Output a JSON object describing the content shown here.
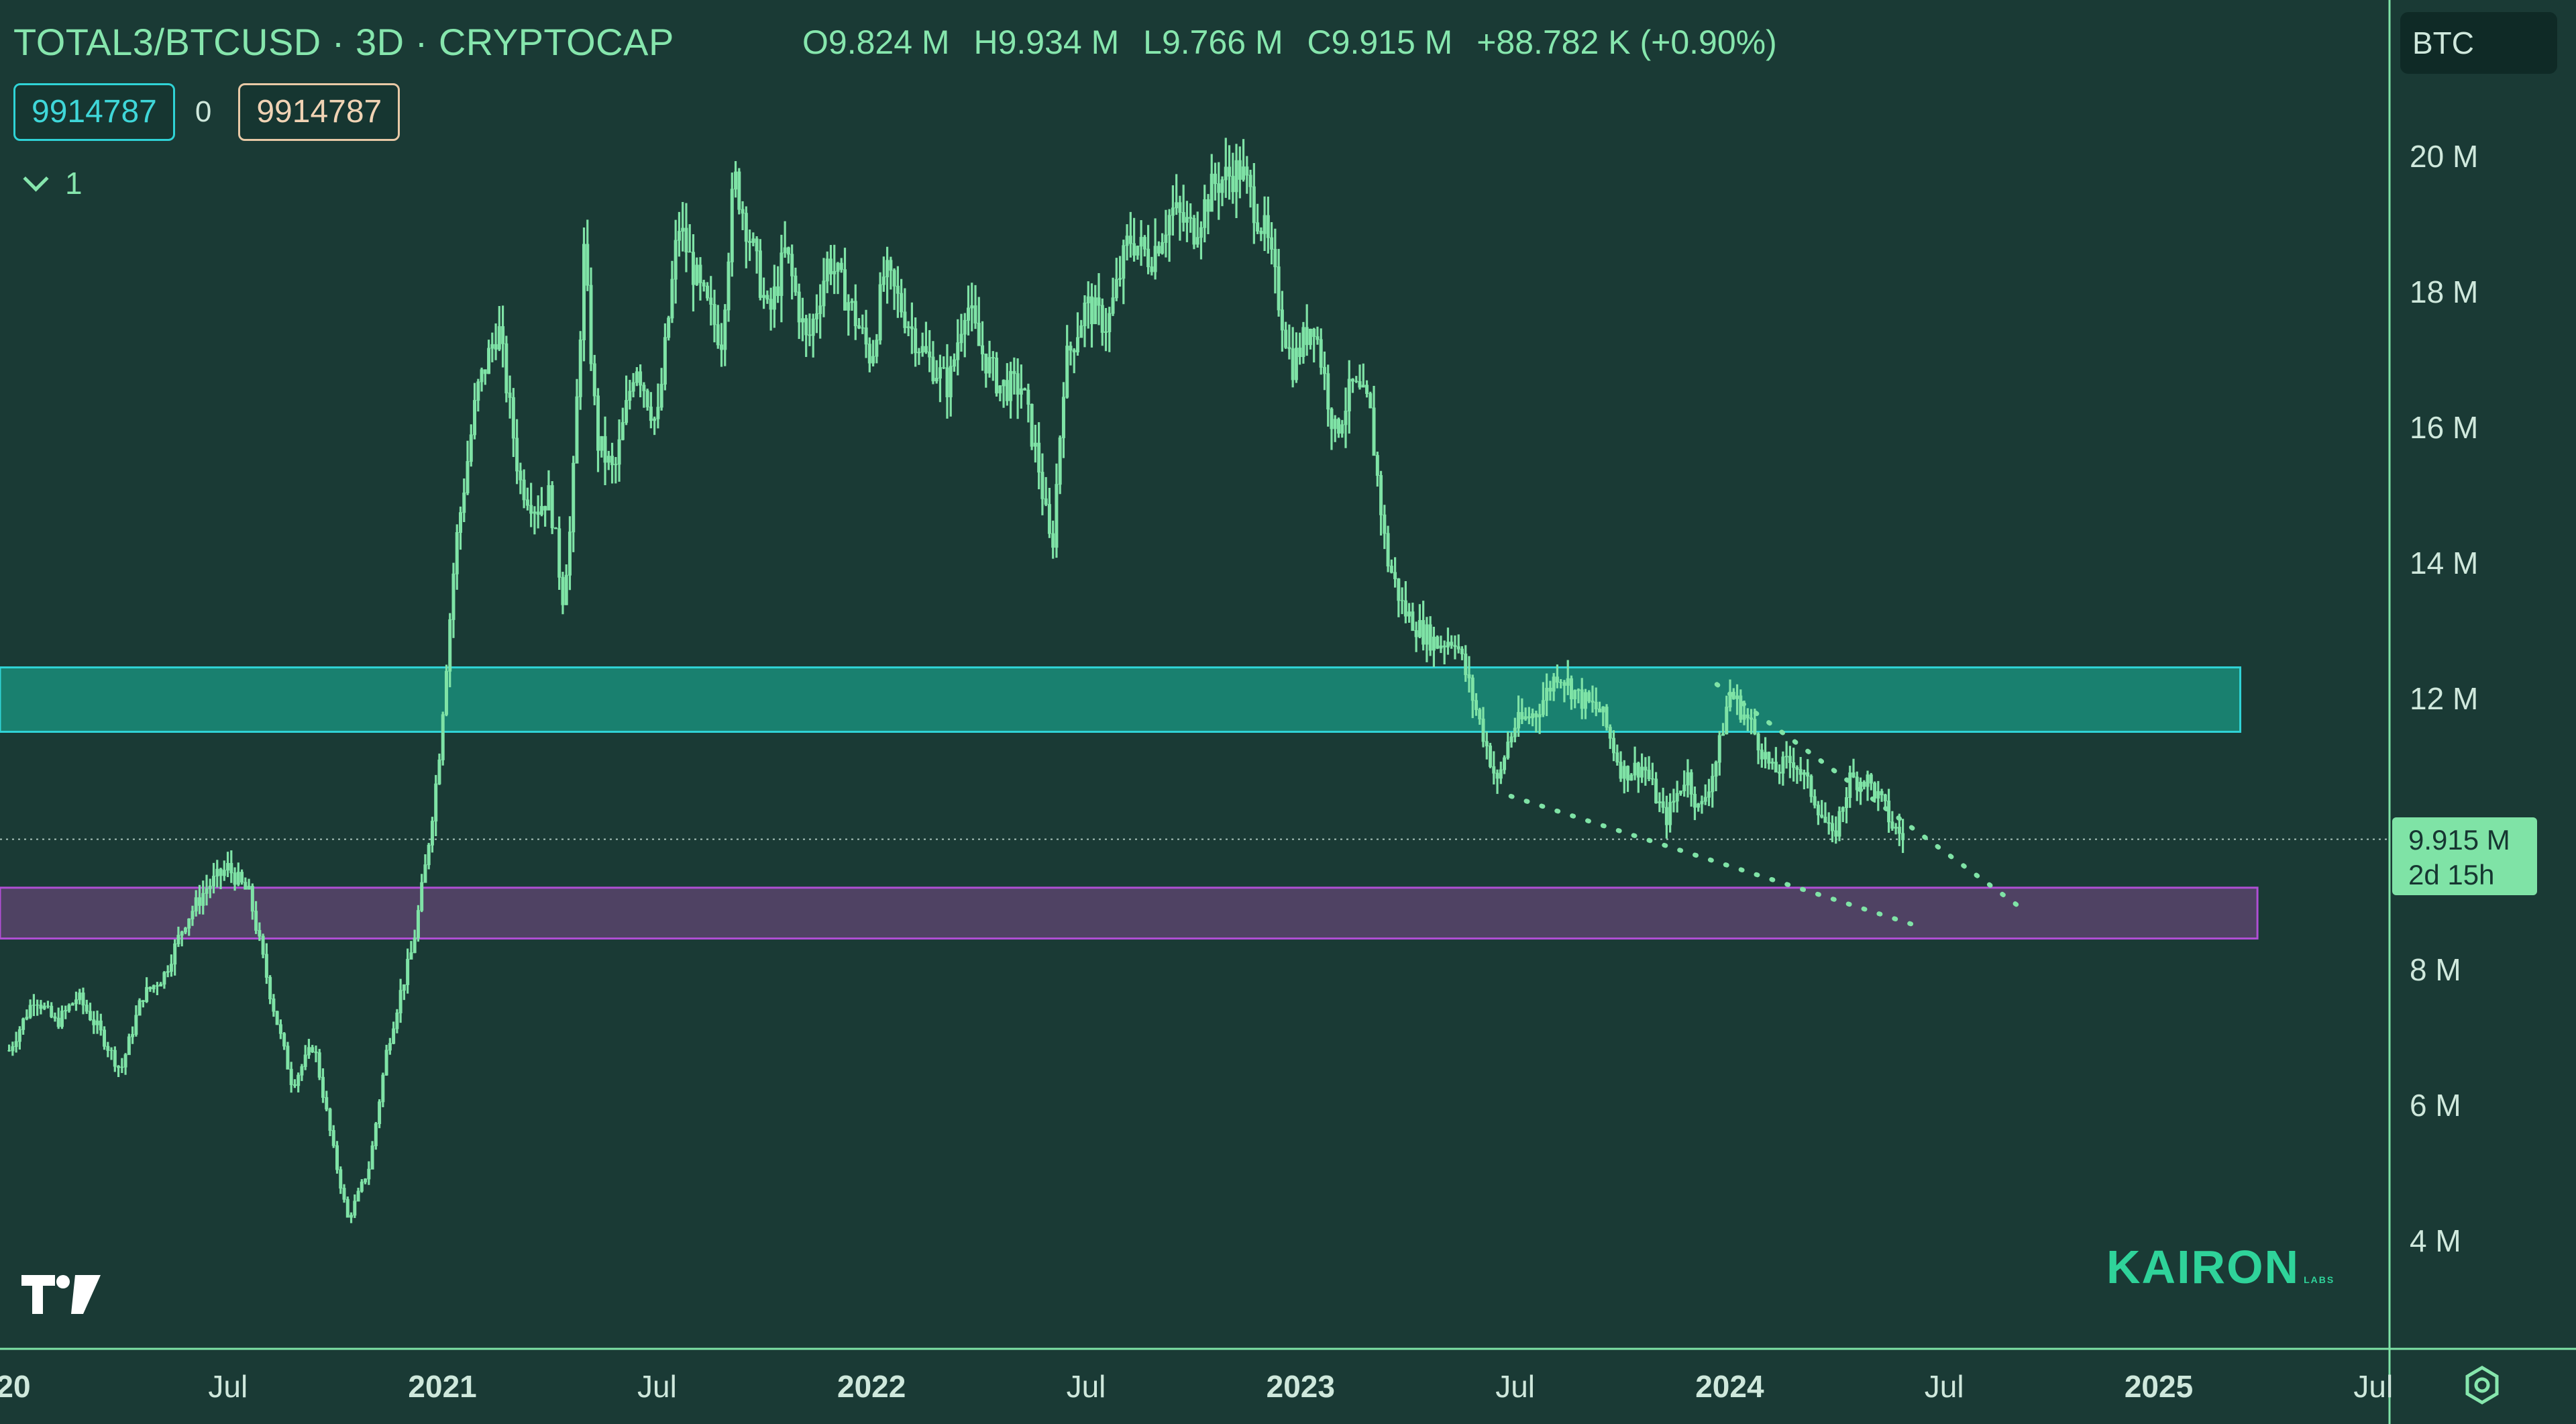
{
  "header": {
    "title": "TOTAL3/BTCUSD · 3D · CRYPTOCAP",
    "ohlc": {
      "open": "O9.824 M",
      "high": "H9.934 M",
      "low": "L9.766 M",
      "close": "C9.915 M",
      "change": "+88.782 K (+0.90%)"
    },
    "input_a": "9914787",
    "input_zero": "0",
    "input_b": "9914787",
    "collapse_count": "1"
  },
  "price_axis": {
    "unit": "BTC",
    "current_value": "9.915 M",
    "countdown": "2d 15h"
  },
  "watermark": {
    "brand": "KAIRON",
    "sub": "LABS"
  },
  "colors": {
    "background": "#1a3a35",
    "candles": "#7fe3a6",
    "resistance_zone": "#19806f",
    "support_zone": "#4f4263",
    "support_border": "#b04fd4",
    "resistance_border": "#2fd3d6"
  },
  "chart_data": {
    "type": "line",
    "title": "TOTAL3/BTCUSD · 3D · CRYPTOCAP",
    "y_ticks": [
      "4 M",
      "6 M",
      "8 M",
      "12 M",
      "14 M",
      "16 M",
      "18 M",
      "20 M"
    ],
    "x_ticks": [
      {
        "label": "20",
        "t": 2020.0,
        "bold": true
      },
      {
        "label": "Jul",
        "t": 2020.5,
        "bold": false
      },
      {
        "label": "2021",
        "t": 2021.0,
        "bold": true
      },
      {
        "label": "Jul",
        "t": 2021.5,
        "bold": false
      },
      {
        "label": "2022",
        "t": 2022.0,
        "bold": true
      },
      {
        "label": "Jul",
        "t": 2022.5,
        "bold": false
      },
      {
        "label": "2023",
        "t": 2023.0,
        "bold": true
      },
      {
        "label": "Jul",
        "t": 2023.5,
        "bold": false
      },
      {
        "label": "2024",
        "t": 2024.0,
        "bold": true
      },
      {
        "label": "Jul",
        "t": 2024.5,
        "bold": false
      },
      {
        "label": "2025",
        "t": 2025.0,
        "bold": true
      },
      {
        "label": "Jul",
        "t": 2025.5,
        "bold": false
      }
    ],
    "ylim": [
      2.8,
      21.5
    ],
    "xlim": [
      2019.99,
      2025.5
    ],
    "series": [
      {
        "x": [
          2019.99,
          2020.05,
          2020.1,
          2020.15,
          2020.2,
          2020.25,
          2020.3,
          2020.35,
          2020.4,
          2020.45,
          2020.5,
          2020.55,
          2020.6,
          2020.65,
          2020.7,
          2020.75,
          2020.78,
          2020.83,
          2020.87,
          2020.9,
          2020.93,
          2020.96,
          2020.99,
          2021.03,
          2021.08,
          2021.13,
          2021.18,
          2021.22,
          2021.25,
          2021.28,
          2021.3,
          2021.33,
          2021.36,
          2021.4,
          2021.45,
          2021.5,
          2021.55,
          2021.6,
          2021.65,
          2021.68,
          2021.72,
          2021.76,
          2021.8,
          2021.85,
          2021.9,
          2021.95,
          2022.0,
          2022.03,
          2022.06,
          2022.12,
          2022.18,
          2022.22,
          2022.25,
          2022.3,
          2022.35,
          2022.39,
          2022.42,
          2022.45,
          2022.5,
          2022.55,
          2022.6,
          2022.65,
          2022.7,
          2022.75,
          2022.8,
          2022.86,
          2022.92,
          2022.98,
          2023.03,
          2023.08,
          2023.12,
          2023.16,
          2023.2,
          2023.24,
          2023.28,
          2023.32,
          2023.36,
          2023.42,
          2023.46,
          2023.48,
          2023.5,
          2023.55,
          2023.6,
          2023.65,
          2023.7,
          2023.75,
          2023.8,
          2023.85,
          2023.9,
          2023.93,
          2023.97,
          2024.0,
          2024.05,
          2024.1,
          2024.15,
          2024.2,
          2024.24,
          2024.28,
          2024.32,
          2024.36,
          2024.38,
          2024.41
        ],
        "y": [
          6.8,
          7.6,
          7.2,
          7.6,
          7.1,
          6.5,
          7.6,
          7.9,
          8.7,
          9.2,
          9.5,
          9.1,
          7.6,
          6.3,
          6.9,
          5.2,
          4.3,
          5.1,
          6.8,
          7.6,
          8.3,
          9.5,
          11.0,
          14.2,
          16.5,
          17.5,
          15.2,
          14.8,
          15.0,
          13.5,
          14.6,
          18.6,
          15.8,
          15.3,
          17.0,
          16.0,
          19.0,
          18.0,
          17.3,
          19.7,
          18.7,
          17.6,
          18.6,
          17.2,
          18.5,
          17.8,
          17.0,
          18.3,
          17.9,
          17.1,
          16.6,
          17.9,
          17.2,
          16.6,
          16.6,
          15.4,
          14.1,
          16.9,
          17.8,
          17.5,
          18.8,
          18.5,
          19.2,
          18.9,
          19.6,
          19.8,
          18.8,
          16.9,
          17.6,
          15.9,
          16.6,
          16.3,
          14.1,
          13.3,
          13.0,
          12.8,
          12.9,
          11.6,
          10.7,
          11.3,
          11.6,
          11.8,
          12.4,
          12.0,
          11.8,
          10.9,
          11.0,
          10.2,
          10.9,
          10.3,
          11.1,
          12.1,
          11.6,
          10.9,
          11.1,
          10.5,
          9.9,
          10.8,
          10.8,
          10.4,
          10.1,
          9.915
        ]
      }
    ],
    "zones": [
      {
        "name": "resistance",
        "y_low": 11.5,
        "y_high": 12.45,
        "x_end": 2025.19
      },
      {
        "name": "support",
        "y_low": 8.45,
        "y_high": 9.2,
        "x_end": 2025.23
      }
    ],
    "trendlines": [
      {
        "name": "upper",
        "x1": 2023.97,
        "y1": 12.2,
        "x2": 2024.69,
        "y2": 8.85
      },
      {
        "name": "lower",
        "x1": 2023.49,
        "y1": 10.55,
        "x2": 2024.43,
        "y2": 8.65
      }
    ],
    "current_price": 9.915
  }
}
